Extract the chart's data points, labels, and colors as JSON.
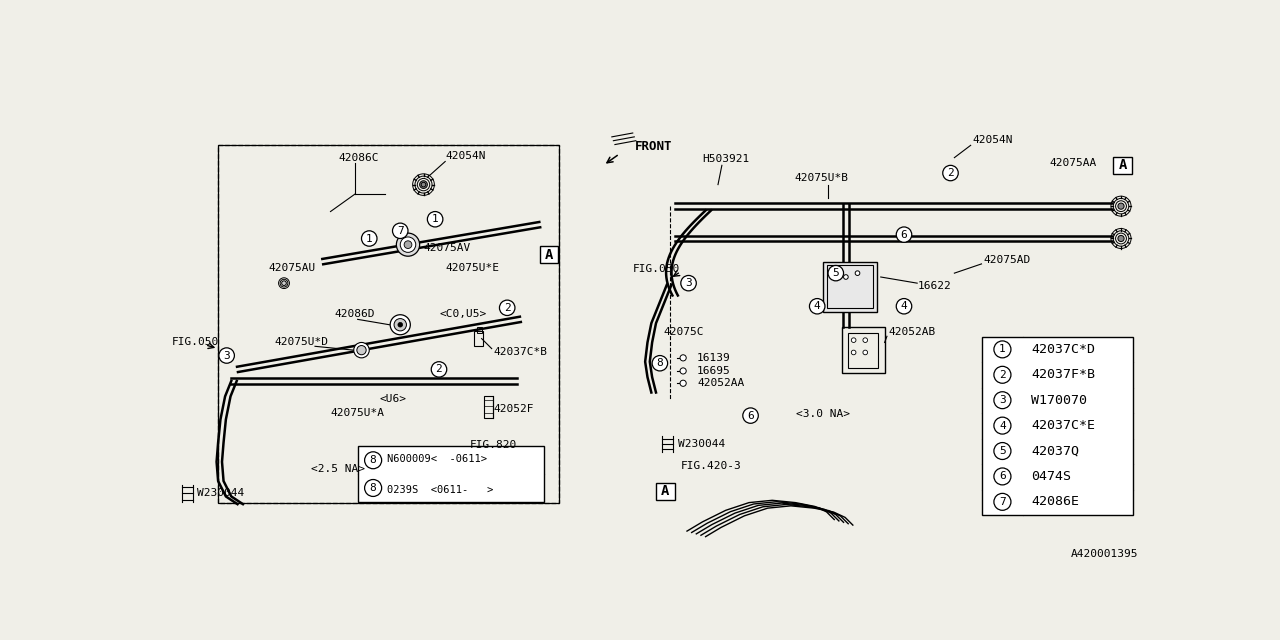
{
  "bg_color": "#f0efe8",
  "diagram_id": "A420001395",
  "legend_items": [
    {
      "num": "1",
      "code": "42037C*D"
    },
    {
      "num": "2",
      "code": "42037F*B"
    },
    {
      "num": "3",
      "code": "W170070"
    },
    {
      "num": "4",
      "code": "42037C*E"
    },
    {
      "num": "5",
      "code": "42037Q"
    },
    {
      "num": "6",
      "code": "0474S"
    },
    {
      "num": "7",
      "code": "42086E"
    }
  ],
  "part8_row1": "N600009<  -0611>",
  "part8_row2": "0239S  <0611-   >"
}
